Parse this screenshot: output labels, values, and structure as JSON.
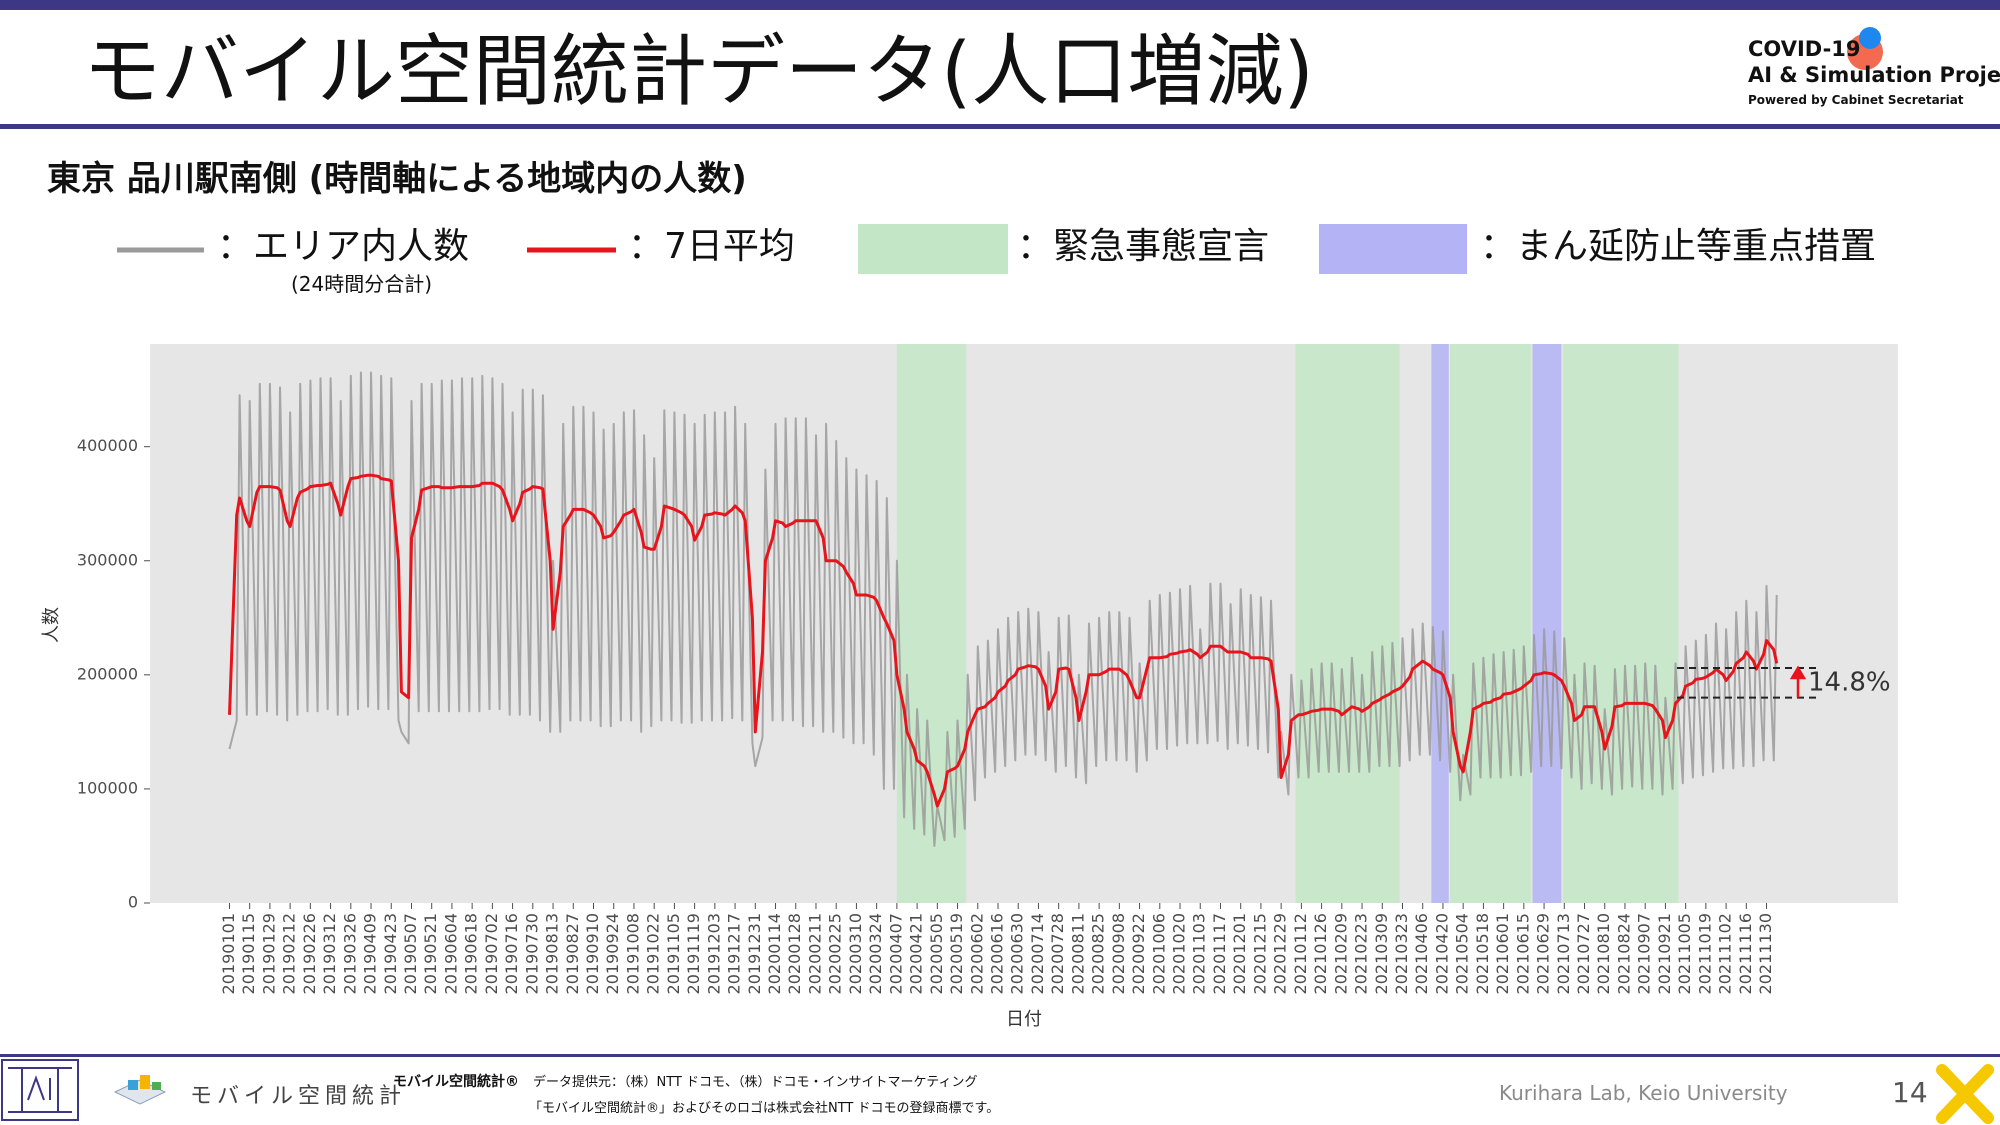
{
  "header": {
    "title": "モバイル空間統計データ(人口増減)",
    "logo": {
      "line1": "COVID-19",
      "line2": "AI & Simulation Project",
      "line3": "Powered by Cabinet Secretariat"
    }
  },
  "chart_data": {
    "type": "line",
    "title": "東京 品川駅南側 (時間軸による地域内の人数)",
    "x_label": "日付",
    "y_label": "人数",
    "x": [
      "20190101",
      "20190106",
      "20190108",
      "20190113",
      "20190115",
      "20190120",
      "20190122",
      "20190127",
      "20190129",
      "20190203",
      "20190205",
      "20190210",
      "20190212",
      "20190217",
      "20190219",
      "20190224",
      "20190226",
      "20190303",
      "20190305",
      "20190310",
      "20190312",
      "20190317",
      "20190319",
      "20190324",
      "20190326",
      "20190331",
      "20190402",
      "20190407",
      "20190409",
      "20190414",
      "20190416",
      "20190421",
      "20190423",
      "20190428",
      "20190430",
      "20190505",
      "20190507",
      "20190512",
      "20190514",
      "20190519",
      "20190521",
      "20190526",
      "20190528",
      "20190602",
      "20190604",
      "20190609",
      "20190611",
      "20190616",
      "20190618",
      "20190623",
      "20190625",
      "20190630",
      "20190702",
      "20190707",
      "20190709",
      "20190714",
      "20190716",
      "20190721",
      "20190723",
      "20190728",
      "20190730",
      "20190804",
      "20190806",
      "20190811",
      "20190813",
      "20190818",
      "20190820",
      "20190825",
      "20190827",
      "20190901",
      "20190903",
      "20190908",
      "20190910",
      "20190915",
      "20190917",
      "20190922",
      "20190924",
      "20190929",
      "20191001",
      "20191006",
      "20191008",
      "20191013",
      "20191015",
      "20191020",
      "20191022",
      "20191027",
      "20191029",
      "20191103",
      "20191105",
      "20191110",
      "20191112",
      "20191117",
      "20191119",
      "20191124",
      "20191126",
      "20191201",
      "20191203",
      "20191208",
      "20191210",
      "20191215",
      "20191217",
      "20191222",
      "20191224",
      "20191229",
      "20191231",
      "20200105",
      "20200107",
      "20200112",
      "20200114",
      "20200119",
      "20200121",
      "20200126",
      "20200128",
      "20200202",
      "20200204",
      "20200209",
      "20200211",
      "20200216",
      "20200218",
      "20200223",
      "20200225",
      "20200301",
      "20200303",
      "20200308",
      "20200310",
      "20200315",
      "20200317",
      "20200322",
      "20200324",
      "20200329",
      "20200331",
      "20200405",
      "20200407",
      "20200412",
      "20200414",
      "20200419",
      "20200421",
      "20200426",
      "20200428",
      "20200503",
      "20200505",
      "20200510",
      "20200512",
      "20200517",
      "20200519",
      "20200524",
      "20200526",
      "20200531",
      "20200602",
      "20200607",
      "20200609",
      "20200614",
      "20200616",
      "20200621",
      "20200623",
      "20200628",
      "20200630",
      "20200705",
      "20200707",
      "20200712",
      "20200714",
      "20200719",
      "20200721",
      "20200726",
      "20200728",
      "20200802",
      "20200804",
      "20200809",
      "20200811",
      "20200816",
      "20200818",
      "20200823",
      "20200825",
      "20200830",
      "20200901",
      "20200906",
      "20200908",
      "20200913",
      "20200915",
      "20200920",
      "20200922",
      "20200927",
      "20200929",
      "20201004",
      "20201006",
      "20201011",
      "20201013",
      "20201018",
      "20201020",
      "20201025",
      "20201027",
      "20201101",
      "20201103",
      "20201108",
      "20201110",
      "20201115",
      "20201117",
      "20201122",
      "20201124",
      "20201129",
      "20201201",
      "20201206",
      "20201208",
      "20201213",
      "20201215",
      "20201220",
      "20201222",
      "20201227",
      "20201229",
      "20210103",
      "20210105",
      "20210110",
      "20210112",
      "20210117",
      "20210119",
      "20210124",
      "20210126",
      "20210131",
      "20210202",
      "20210207",
      "20210209",
      "20210214",
      "20210216",
      "20210221",
      "20210223",
      "20210228",
      "20210302",
      "20210307",
      "20210309",
      "20210314",
      "20210316",
      "20210321",
      "20210323",
      "20210328",
      "20210330",
      "20210404",
      "20210406",
      "20210411",
      "20210413",
      "20210418",
      "20210420",
      "20210425",
      "20210427",
      "20210502",
      "20210504",
      "20210509",
      "20210511",
      "20210516",
      "20210518",
      "20210523",
      "20210525",
      "20210530",
      "20210601",
      "20210606",
      "20210608",
      "20210613",
      "20210615",
      "20210620",
      "20210622",
      "20210627",
      "20210629",
      "20210704",
      "20210706",
      "20210711",
      "20210713",
      "20210718",
      "20210720",
      "20210725",
      "20210727",
      "20210801",
      "20210803",
      "20210808",
      "20210810",
      "20210815",
      "20210817",
      "20210822",
      "20210824",
      "20210829",
      "20210831",
      "20210905",
      "20210907",
      "20210912",
      "20210914",
      "20210919",
      "20210921",
      "20210926",
      "20210928",
      "20211003",
      "20211005",
      "20211010",
      "20211012",
      "20211017",
      "20211019",
      "20211024",
      "20211026",
      "20211031",
      "20211102",
      "20211107",
      "20211109",
      "20211114",
      "20211116",
      "20211121",
      "20211123",
      "20211128",
      "20211130",
      "20211205",
      "20211207"
    ],
    "xlim": [
      "20181107",
      "20220301"
    ],
    "xticks": [
      "20190101",
      "20190115",
      "20190129",
      "20190212",
      "20190226",
      "20190312",
      "20190326",
      "20190409",
      "20190423",
      "20190507",
      "20190521",
      "20190604",
      "20190618",
      "20190702",
      "20190716",
      "20190730",
      "20190813",
      "20190827",
      "20190910",
      "20190924",
      "20191008",
      "20191022",
      "20191105",
      "20191119",
      "20191203",
      "20191217",
      "20191231",
      "20200114",
      "20200128",
      "20200211",
      "20200225",
      "20200310",
      "20200324",
      "20200407",
      "20200421",
      "20200505",
      "20200519",
      "20200602",
      "20200616",
      "20200630",
      "20200714",
      "20200728",
      "20200811",
      "20200825",
      "20200908",
      "20200922",
      "20201006",
      "20201020",
      "20201103",
      "20201117",
      "20201201",
      "20201215",
      "20201229",
      "20210112",
      "20210126",
      "20210209",
      "20210223",
      "20210309",
      "20210323",
      "20210406",
      "20210420",
      "20210504",
      "20210518",
      "20210601",
      "20210615",
      "20210629",
      "20210713",
      "20210727",
      "20210810",
      "20210824",
      "20210907",
      "20210921",
      "20211005",
      "20211019",
      "20211102",
      "20211116",
      "20211130"
    ],
    "ylim": [
      0,
      490000
    ],
    "yticks": [
      0,
      100000,
      200000,
      300000,
      400000
    ],
    "grid": false,
    "series": [
      {
        "name": "：エリア内人数",
        "sublabel": "(24時間分合計)",
        "color": "#9a9a9a",
        "values": [
          135000,
          160000,
          445000,
          165000,
          440000,
          165000,
          455000,
          168000,
          455000,
          165000,
          452000,
          160000,
          430000,
          165000,
          455000,
          168000,
          458000,
          168000,
          460000,
          170000,
          460000,
          165000,
          440000,
          165000,
          462000,
          170000,
          465000,
          172000,
          465000,
          170000,
          462000,
          170000,
          460000,
          160000,
          150000,
          140000,
          440000,
          168000,
          455000,
          168000,
          455000,
          168000,
          458000,
          168000,
          458000,
          168000,
          460000,
          168000,
          460000,
          168000,
          462000,
          170000,
          460000,
          170000,
          455000,
          165000,
          430000,
          165000,
          450000,
          165000,
          450000,
          160000,
          445000,
          150000,
          300000,
          150000,
          420000,
          160000,
          435000,
          160000,
          435000,
          160000,
          430000,
          155000,
          415000,
          155000,
          420000,
          160000,
          430000,
          160000,
          432000,
          150000,
          410000,
          155000,
          390000,
          160000,
          432000,
          160000,
          430000,
          158000,
          428000,
          158000,
          420000,
          160000,
          428000,
          160000,
          430000,
          160000,
          430000,
          162000,
          435000,
          160000,
          420000,
          140000,
          120000,
          145000,
          380000,
          160000,
          420000,
          160000,
          425000,
          160000,
          425000,
          155000,
          425000,
          155000,
          410000,
          150000,
          420000,
          150000,
          405000,
          145000,
          390000,
          140000,
          380000,
          140000,
          375000,
          130000,
          370000,
          100000,
          355000,
          100000,
          300000,
          75000,
          200000,
          65000,
          170000,
          60000,
          160000,
          50000,
          85000,
          55000,
          150000,
          58000,
          160000,
          65000,
          200000,
          90000,
          225000,
          110000,
          230000,
          115000,
          240000,
          120000,
          250000,
          125000,
          255000,
          130000,
          258000,
          130000,
          255000,
          125000,
          220000,
          115000,
          250000,
          120000,
          252000,
          110000,
          200000,
          105000,
          245000,
          120000,
          250000,
          125000,
          255000,
          125000,
          255000,
          125000,
          250000,
          115000,
          210000,
          125000,
          265000,
          135000,
          270000,
          135000,
          272000,
          138000,
          275000,
          140000,
          278000,
          140000,
          240000,
          140000,
          280000,
          142000,
          280000,
          135000,
          262000,
          140000,
          275000,
          138000,
          270000,
          135000,
          268000,
          132000,
          265000,
          110000,
          150000,
          95000,
          200000,
          110000,
          195000,
          110000,
          205000,
          115000,
          210000,
          115000,
          210000,
          115000,
          205000,
          115000,
          215000,
          115000,
          200000,
          115000,
          220000,
          120000,
          225000,
          120000,
          228000,
          120000,
          232000,
          125000,
          240000,
          130000,
          245000,
          130000,
          242000,
          125000,
          238000,
          115000,
          200000,
          90000,
          130000,
          95000,
          210000,
          110000,
          215000,
          110000,
          218000,
          110000,
          220000,
          112000,
          222000,
          112000,
          225000,
          115000,
          235000,
          120000,
          240000,
          120000,
          238000,
          118000,
          232000,
          110000,
          200000,
          100000,
          210000,
          105000,
          208000,
          100000,
          170000,
          95000,
          205000,
          100000,
          208000,
          102000,
          208000,
          100000,
          210000,
          100000,
          208000,
          95000,
          180000,
          100000,
          210000,
          105000,
          225000,
          110000,
          230000,
          112000,
          235000,
          115000,
          245000,
          118000,
          240000,
          118000,
          255000,
          120000,
          265000,
          120000,
          255000,
          125000,
          278000,
          125000,
          270000
        ]
      },
      {
        "name": "：7日平均",
        "color": "#e8141c",
        "values": [
          165000,
          340000,
          355000,
          335000,
          330000,
          360000,
          365000,
          365000,
          365000,
          364000,
          362000,
          335000,
          330000,
          355000,
          360000,
          363000,
          365000,
          366000,
          366000,
          367000,
          368000,
          350000,
          340000,
          365000,
          372000,
          373000,
          374000,
          375000,
          375000,
          374000,
          372000,
          371000,
          370000,
          300000,
          185000,
          180000,
          320000,
          345000,
          362000,
          364000,
          365000,
          365000,
          364000,
          364000,
          364000,
          365000,
          365000,
          365000,
          365000,
          366000,
          368000,
          368000,
          368000,
          365000,
          362000,
          345000,
          335000,
          350000,
          360000,
          363000,
          365000,
          364000,
          363000,
          300000,
          240000,
          290000,
          330000,
          340000,
          345000,
          345000,
          345000,
          342000,
          340000,
          330000,
          320000,
          322000,
          325000,
          335000,
          340000,
          343000,
          345000,
          325000,
          312000,
          310000,
          310000,
          330000,
          348000,
          346000,
          345000,
          342000,
          340000,
          330000,
          318000,
          330000,
          340000,
          341000,
          342000,
          341000,
          340000,
          345000,
          348000,
          342000,
          335000,
          250000,
          150000,
          220000,
          300000,
          320000,
          335000,
          333000,
          330000,
          333000,
          335000,
          335000,
          335000,
          335000,
          335000,
          320000,
          300000,
          300000,
          300000,
          295000,
          290000,
          280000,
          270000,
          270000,
          270000,
          268000,
          265000,
          250000,
          245000,
          230000,
          200000,
          170000,
          150000,
          135000,
          125000,
          120000,
          115000,
          95000,
          85000,
          100000,
          115000,
          118000,
          120000,
          135000,
          150000,
          165000,
          170000,
          172000,
          175000,
          180000,
          185000,
          190000,
          195000,
          200000,
          205000,
          207000,
          208000,
          207000,
          205000,
          190000,
          170000,
          185000,
          205000,
          206000,
          205000,
          180000,
          160000,
          185000,
          200000,
          200000,
          200000,
          203000,
          205000,
          205000,
          205000,
          200000,
          195000,
          180000,
          180000,
          205000,
          215000,
          215000,
          215000,
          216000,
          218000,
          219000,
          220000,
          221000,
          222000,
          218000,
          215000,
          220000,
          225000,
          225000,
          225000,
          220000,
          220000,
          220000,
          220000,
          218000,
          215000,
          215000,
          215000,
          214000,
          212000,
          170000,
          110000,
          130000,
          160000,
          165000,
          165000,
          167000,
          168000,
          169000,
          170000,
          170000,
          170000,
          168000,
          165000,
          170000,
          172000,
          170000,
          168000,
          172000,
          175000,
          178000,
          180000,
          183000,
          185000,
          188000,
          190000,
          198000,
          205000,
          210000,
          212000,
          208000,
          205000,
          202000,
          200000,
          180000,
          150000,
          120000,
          115000,
          150000,
          170000,
          173000,
          175000,
          176000,
          178000,
          180000,
          183000,
          184000,
          185000,
          188000,
          190000,
          195000,
          200000,
          201000,
          202000,
          201000,
          200000,
          195000,
          190000,
          175000,
          160000,
          165000,
          172000,
          172000,
          172000,
          150000,
          135000,
          155000,
          172000,
          173000,
          175000,
          175000,
          175000,
          175000,
          175000,
          173000,
          170000,
          160000,
          145000,
          160000,
          175000,
          182000,
          190000,
          193000,
          196000,
          197000,
          198000,
          202000,
          205000,
          200000,
          195000,
          203000,
          210000,
          215000,
          220000,
          212000,
          205000,
          218000,
          230000,
          222000,
          210000
        ]
      }
    ],
    "periods": [
      {
        "name": "：緊急事態宣言",
        "color": "#c2e6c6",
        "ranges": [
          [
            "20200407",
            "20200525"
          ],
          [
            "20210108",
            "20210321"
          ],
          [
            "20210425",
            "20210620"
          ],
          [
            "20210712",
            "20210930"
          ]
        ]
      },
      {
        "name": "：まん延防止等重点措置",
        "color": "#b3b3f5",
        "ranges": [
          [
            "20210412",
            "20210424"
          ],
          [
            "20210621",
            "20210711"
          ]
        ]
      }
    ],
    "annotation": {
      "text": "14.8%",
      "levels": [
        180000,
        206000
      ]
    }
  },
  "footer": {
    "brand": "モバイル空間統計",
    "credit_title": "モバイル空間統計®",
    "credit": "データ提供元：（株）NTT ドコモ、（株）ドコモ・インサイトマーケティング",
    "trademark": "「モバイル空間統計®」およびそのロゴは株式会社NTT ドコモの登録商標です。",
    "lab": "Kurihara Lab, Keio University",
    "page": 14
  }
}
